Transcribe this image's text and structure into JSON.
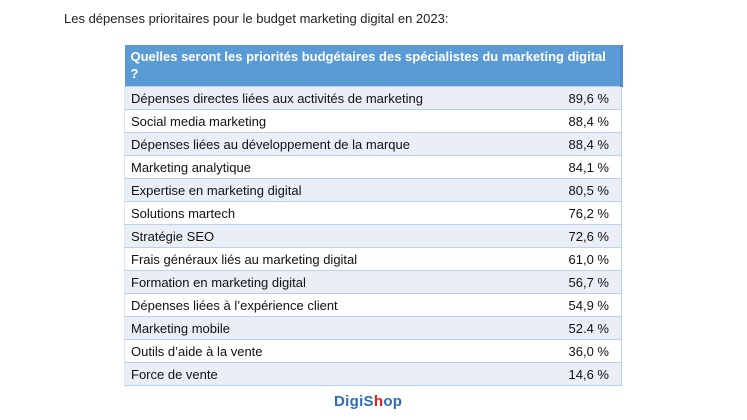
{
  "title": "Les dépenses prioritaires pour le budget marketing digital en 2023:",
  "table": {
    "header": "Quelles seront les priorités budgétaires des spécialistes du marketing digital ?",
    "rows": [
      {
        "label": "Dépenses directes liées aux activités de marketing",
        "value": "89,6 %"
      },
      {
        "label": "Social media marketing",
        "value": "88,4 %"
      },
      {
        "label": "Dépenses liées au développement de la marque",
        "value": "88,4 %"
      },
      {
        "label": "Marketing analytique",
        "value": "84,1 %"
      },
      {
        "label": "Expertise en marketing digital",
        "value": "80,5 %"
      },
      {
        "label": "Solutions martech",
        "value": "76,2 %"
      },
      {
        "label": "Stratégie SEO",
        "value": "72,6 %"
      },
      {
        "label": "Frais généraux liés au marketing digital",
        "value": "61,0 %"
      },
      {
        "label": "Formation en marketing digital",
        "value": "56,7 %"
      },
      {
        "label": "Dépenses liées à l’expérience client",
        "value": "54,9 %"
      },
      {
        "label": "Marketing mobile",
        "value": "52.4 %"
      },
      {
        "label": "Outils d’aide à la vente",
        "value": "36,0 %"
      },
      {
        "label": "Force de vente",
        "value": "14,6 %"
      }
    ]
  },
  "logo": {
    "part1": "DigiS",
    "part2": "h",
    "part3": "op"
  },
  "colors": {
    "header": "#5b9bd5",
    "alt_row": "#e9eef7",
    "logo_blue": "#2a6db5",
    "logo_red": "#e02020"
  }
}
